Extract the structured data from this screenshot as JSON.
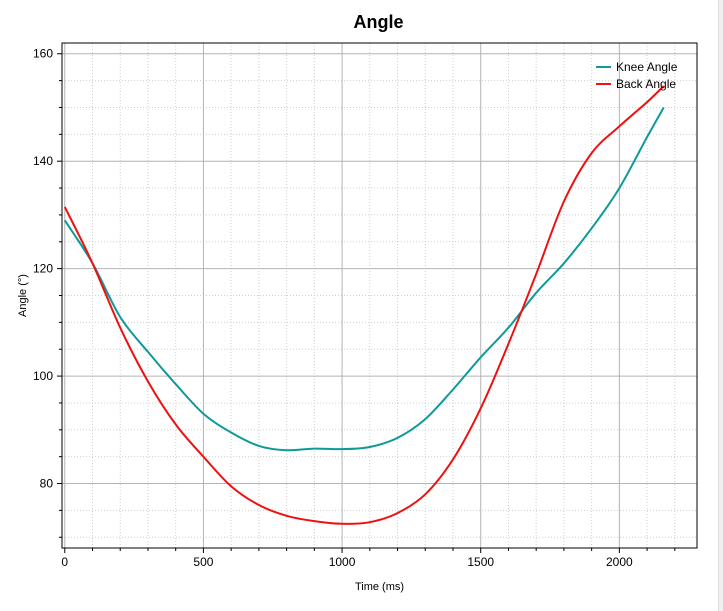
{
  "chart_data": {
    "type": "line",
    "title": "Angle",
    "xlabel": "Time (ms)",
    "ylabel": "Angle (°)",
    "xlim": [
      -10,
      2280
    ],
    "ylim": [
      68,
      162
    ],
    "xticks": [
      0,
      500,
      1000,
      1500,
      2000
    ],
    "yticks": [
      80,
      100,
      120,
      140,
      160
    ],
    "grid": true,
    "legend_position": "top-right",
    "series": [
      {
        "name": "Knee Angle",
        "color": "#0e9a9a",
        "x": [
          0,
          100,
          200,
          300,
          400,
          500,
          600,
          700,
          800,
          900,
          1000,
          1100,
          1200,
          1300,
          1400,
          1500,
          1600,
          1700,
          1800,
          1900,
          2000,
          2100,
          2160
        ],
        "y": [
          129.0,
          121.0,
          111.0,
          104.5,
          98.5,
          93.0,
          89.5,
          87.0,
          86.2,
          86.5,
          86.4,
          86.8,
          88.5,
          92.0,
          97.5,
          103.5,
          109.0,
          115.5,
          121.0,
          127.5,
          135.0,
          144.5,
          150.0
        ]
      },
      {
        "name": "Back Angle",
        "color": "#ee1111",
        "x": [
          0,
          100,
          200,
          300,
          400,
          500,
          600,
          700,
          800,
          900,
          1000,
          1100,
          1200,
          1300,
          1400,
          1500,
          1600,
          1700,
          1800,
          1900,
          2000,
          2100,
          2160
        ],
        "y": [
          131.5,
          121.0,
          109.0,
          99.0,
          91.0,
          85.0,
          79.5,
          76.0,
          74.0,
          73.0,
          72.5,
          72.8,
          74.5,
          78.0,
          84.5,
          94.0,
          106.0,
          119.0,
          132.5,
          141.5,
          146.5,
          151.0,
          154.0
        ]
      }
    ]
  }
}
